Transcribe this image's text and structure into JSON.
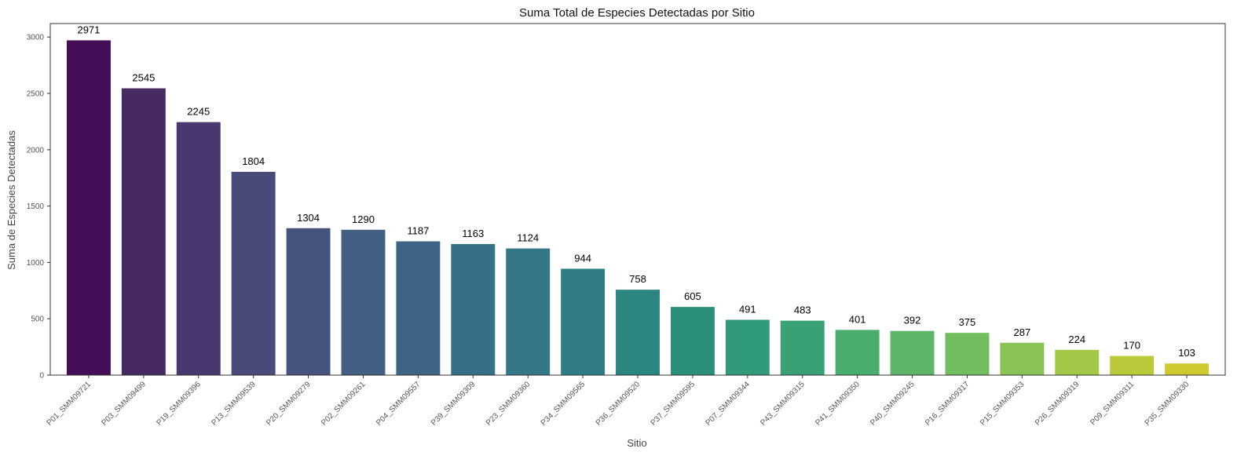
{
  "chart_data": {
    "type": "bar",
    "title": "Suma Total de Especies Detectadas por Sitio",
    "xlabel": "Sitio",
    "ylabel": "Suma de Especies Detectadas",
    "categories": [
      "P01_SMM09721",
      "P03_SMM09499",
      "P19_SMM09396",
      "P13_SMM09539",
      "P20_SMM09279",
      "P02_SMM09261",
      "P04_SMM09557",
      "P39_SMM09309",
      "P23_SMM09360",
      "P34_SMM09565",
      "P36_SMM09520",
      "P37_SMM09595",
      "P07_SMM09344",
      "P43_SMM09315",
      "P41_SMM09350",
      "P40_SMM09245",
      "P16_SMM09317",
      "P15_SMM09353",
      "P26_SMM09319",
      "P09_SMM09311",
      "P35_SMM09330"
    ],
    "values": [
      2971,
      2545,
      2245,
      1804,
      1304,
      1290,
      1187,
      1163,
      1124,
      944,
      758,
      605,
      491,
      483,
      401,
      392,
      375,
      287,
      224,
      170,
      103
    ],
    "ylim": [
      0,
      3120
    ],
    "yticks": [
      0,
      500,
      1000,
      1500,
      2000,
      2500,
      3000
    ],
    "data_labels": [
      "2971",
      "2545",
      "2245",
      "1804",
      "1304",
      "1290",
      "1187",
      "1163",
      "1124",
      "944",
      "758",
      "605",
      "491",
      "483",
      "401",
      "392",
      "375",
      "287",
      "224",
      "170",
      "103"
    ],
    "colors": [
      "#440f57",
      "#472a64",
      "#48386f",
      "#484a79",
      "#46537f",
      "#435f83",
      "#3d6485",
      "#376f86",
      "#357786",
      "#307c84",
      "#2b867f",
      "#2a8e7b",
      "#309a7a",
      "#3aa175",
      "#48ad6f",
      "#5db56a",
      "#72bd60",
      "#89c257",
      "#a3c847",
      "#b9c939",
      "#cdca2d"
    ],
    "grid": false,
    "legend": "none"
  }
}
